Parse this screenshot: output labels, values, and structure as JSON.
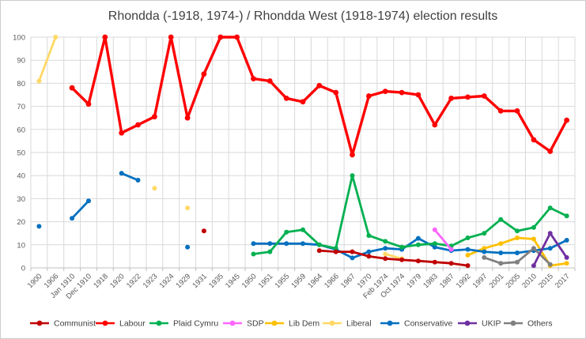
{
  "chart_data": {
    "type": "line",
    "title": "Rhondda (-1918, 1974-) / Rhondda West (1918-1974) election results",
    "xlabel": "",
    "ylabel": "",
    "grid": true,
    "legend_position": "bottom",
    "y_axis": {
      "min": 0,
      "max": 100,
      "step": 10,
      "ticks": [
        0,
        10,
        20,
        30,
        40,
        50,
        60,
        70,
        80,
        90,
        100
      ]
    },
    "categories": [
      "1900",
      "1906",
      "Jan 1910",
      "Dec 1910",
      "1918",
      "1920",
      "1922",
      "1923",
      "1924",
      "1929",
      "1931",
      "1935",
      "1945",
      "1950",
      "1951",
      "1955",
      "1959",
      "1964",
      "1966",
      "1967",
      "1970",
      "Feb 1974",
      "Oct 1974",
      "1979",
      "1983",
      "1987",
      "1992",
      "1997",
      "2001",
      "2005",
      "2010",
      "2015",
      "2017"
    ],
    "series": [
      {
        "name": "Communist",
        "color": "#C00000",
        "values": [
          null,
          null,
          null,
          null,
          null,
          null,
          null,
          null,
          null,
          null,
          16,
          null,
          null,
          null,
          null,
          null,
          null,
          7.5,
          7,
          7,
          5,
          4,
          3.5,
          3,
          2.5,
          2,
          1,
          null,
          null,
          null,
          null,
          null,
          null
        ]
      },
      {
        "name": "Labour",
        "color": "#FF0000",
        "values": [
          null,
          null,
          78,
          71,
          100,
          58.5,
          62,
          65.5,
          100,
          65,
          84,
          100,
          100,
          82,
          81,
          73.5,
          72,
          79,
          76,
          49,
          74.5,
          76.5,
          76,
          75,
          62,
          73.5,
          74,
          74.5,
          68,
          68,
          55.5,
          50.5,
          64
        ]
      },
      {
        "name": "Plaid Cymru",
        "color": "#00B050",
        "values": [
          null,
          null,
          null,
          null,
          null,
          null,
          null,
          null,
          null,
          null,
          null,
          null,
          null,
          6,
          7,
          15.5,
          16.5,
          10,
          8.5,
          40,
          14,
          11.5,
          9,
          10,
          10.5,
          9.5,
          13,
          15,
          21,
          16,
          17.5,
          26,
          22.5
        ]
      },
      {
        "name": "SDP",
        "color": "#FF66FF",
        "values": [
          null,
          null,
          null,
          null,
          null,
          null,
          null,
          null,
          null,
          null,
          null,
          null,
          null,
          null,
          null,
          null,
          null,
          null,
          null,
          null,
          null,
          null,
          null,
          null,
          16.5,
          8,
          null,
          null,
          null,
          null,
          null,
          null,
          null
        ]
      },
      {
        "name": "Lib Dem",
        "color": "#FFC000",
        "values": [
          null,
          null,
          null,
          null,
          null,
          null,
          null,
          null,
          null,
          null,
          null,
          null,
          null,
          null,
          null,
          null,
          null,
          null,
          null,
          null,
          null,
          null,
          null,
          null,
          null,
          null,
          5.5,
          8.5,
          10.5,
          13,
          12.5,
          1,
          2
        ]
      },
      {
        "name": "Liberal",
        "color": "#FFD966",
        "values": [
          81,
          100,
          null,
          null,
          null,
          null,
          null,
          34.5,
          null,
          26,
          null,
          null,
          null,
          null,
          null,
          null,
          null,
          null,
          null,
          null,
          null,
          6,
          4,
          null,
          null,
          null,
          null,
          null,
          null,
          null,
          null,
          null,
          null
        ]
      },
      {
        "name": "Conservative",
        "color": "#0070C0",
        "values": [
          18,
          null,
          21.5,
          29,
          null,
          41,
          38,
          null,
          null,
          9,
          null,
          null,
          null,
          10.5,
          10.5,
          10.5,
          10.5,
          10,
          8,
          4.3,
          7,
          8.5,
          8,
          12.8,
          9,
          7.5,
          8,
          7,
          6.5,
          6.5,
          7.5,
          8.5,
          12
        ]
      },
      {
        "name": "UKIP",
        "color": "#7030A0",
        "values": [
          null,
          null,
          null,
          null,
          null,
          null,
          null,
          null,
          null,
          null,
          null,
          null,
          null,
          null,
          null,
          null,
          null,
          null,
          null,
          null,
          null,
          null,
          null,
          null,
          null,
          null,
          null,
          null,
          null,
          null,
          1,
          15,
          4.5
        ]
      },
      {
        "name": "Others",
        "color": "#808080",
        "values": [
          null,
          null,
          null,
          null,
          null,
          null,
          null,
          null,
          null,
          null,
          null,
          null,
          null,
          null,
          null,
          null,
          null,
          null,
          null,
          null,
          null,
          null,
          null,
          null,
          null,
          null,
          null,
          4.5,
          2,
          2.5,
          8.5,
          1.5,
          null
        ]
      }
    ],
    "draw_order": [
      "Liberal",
      "Lib Dem",
      "Conservative",
      "Others",
      "Plaid Cymru",
      "Communist",
      "Labour",
      "SDP",
      "UKIP"
    ],
    "legend_order": [
      "Communist",
      "Labour",
      "Plaid Cymru",
      "SDP",
      "Lib Dem",
      "Liberal",
      "Conservative",
      "UKIP",
      "Others"
    ]
  }
}
